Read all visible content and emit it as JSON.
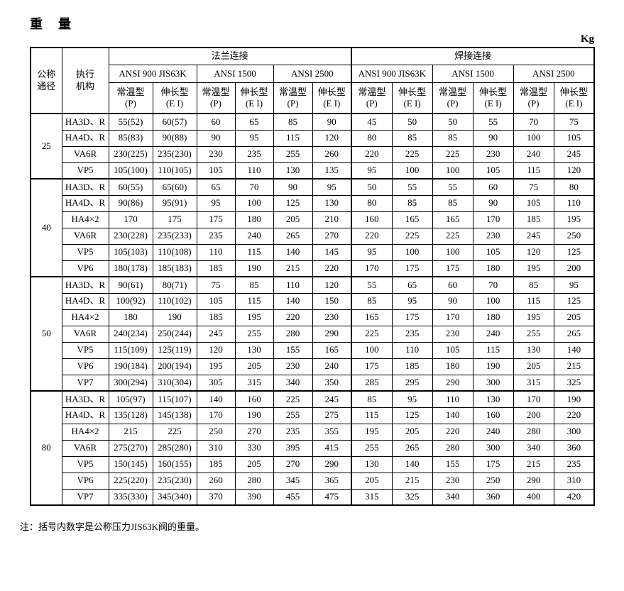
{
  "page": {
    "title": "重　量",
    "unit": "Kg",
    "note": "注：括号内数字是公称压力JIS63K阀的重量。"
  },
  "table": {
    "corner_headers": {
      "dn_lines": [
        "公称",
        "通径"
      ],
      "actuator_lines": [
        "执行",
        "机构"
      ]
    },
    "connection_groups": [
      "法兰连接",
      "焊接连接"
    ],
    "pressure_classes": [
      "ANSI 900  JIS63K",
      "ANSI 1500",
      "ANSI 2500"
    ],
    "type_headers": [
      {
        "line1": "常温型",
        "line2": "(P)"
      },
      {
        "line1": "伸长型",
        "line2": "(E I)"
      }
    ],
    "sections": [
      {
        "dn": "25",
        "rows": [
          {
            "actuator": "HA3D、R",
            "values": [
              "55(52)",
              "60(57)",
              "60",
              "65",
              "85",
              "90",
              "45",
              "50",
              "50",
              "55",
              "70",
              "75"
            ]
          },
          {
            "actuator": "HA4D、R",
            "values": [
              "85(83)",
              "90(88)",
              "90",
              "95",
              "115",
              "120",
              "80",
              "85",
              "85",
              "90",
              "100",
              "105"
            ]
          },
          {
            "actuator": "VA6R",
            "values": [
              "230(225)",
              "235(230)",
              "230",
              "235",
              "255",
              "260",
              "220",
              "225",
              "225",
              "230",
              "240",
              "245"
            ]
          },
          {
            "actuator": "VP5",
            "values": [
              "105(100)",
              "110(105)",
              "105",
              "110",
              "130",
              "135",
              "95",
              "100",
              "100",
              "105",
              "115",
              "120"
            ]
          }
        ]
      },
      {
        "dn": "40",
        "rows": [
          {
            "actuator": "HA3D、R",
            "values": [
              "60(55)",
              "65(60)",
              "65",
              "70",
              "90",
              "95",
              "50",
              "55",
              "55",
              "60",
              "75",
              "80"
            ]
          },
          {
            "actuator": "HA4D、R",
            "values": [
              "90(86)",
              "95(91)",
              "95",
              "100",
              "125",
              "130",
              "80",
              "85",
              "85",
              "90",
              "105",
              "110"
            ]
          },
          {
            "actuator": "HA4×2",
            "values": [
              "170",
              "175",
              "175",
              "180",
              "205",
              "210",
              "160",
              "165",
              "165",
              "170",
              "185",
              "195"
            ]
          },
          {
            "actuator": "VA6R",
            "values": [
              "230(228)",
              "235(233)",
              "235",
              "240",
              "265",
              "270",
              "220",
              "225",
              "225",
              "230",
              "245",
              "250"
            ]
          },
          {
            "actuator": "VP5",
            "values": [
              "105(103)",
              "110(108)",
              "110",
              "115",
              "140",
              "145",
              "95",
              "100",
              "100",
              "105",
              "120",
              "125"
            ]
          },
          {
            "actuator": "VP6",
            "values": [
              "180(178)",
              "185(183)",
              "185",
              "190",
              "215",
              "220",
              "170",
              "175",
              "175",
              "180",
              "195",
              "200"
            ]
          }
        ]
      },
      {
        "dn": "50",
        "rows": [
          {
            "actuator": "HA3D、R",
            "values": [
              "90(61)",
              "80(71)",
              "75",
              "85",
              "110",
              "120",
              "55",
              "65",
              "60",
              "70",
              "85",
              "95"
            ]
          },
          {
            "actuator": "HA4D、R",
            "values": [
              "100(92)",
              "110(102)",
              "105",
              "115",
              "140",
              "150",
              "85",
              "95",
              "90",
              "100",
              "115",
              "125"
            ]
          },
          {
            "actuator": "HA4×2",
            "values": [
              "180",
              "190",
              "185",
              "195",
              "220",
              "230",
              "165",
              "175",
              "170",
              "180",
              "195",
              "205"
            ]
          },
          {
            "actuator": "VA6R",
            "values": [
              "240(234)",
              "250(244)",
              "245",
              "255",
              "280",
              "290",
              "225",
              "235",
              "230",
              "240",
              "255",
              "265"
            ]
          },
          {
            "actuator": "VP5",
            "values": [
              "115(109)",
              "125(119)",
              "120",
              "130",
              "155",
              "165",
              "100",
              "110",
              "105",
              "115",
              "130",
              "140"
            ]
          },
          {
            "actuator": "VP6",
            "values": [
              "190(184)",
              "200(194)",
              "195",
              "205",
              "230",
              "240",
              "175",
              "185",
              "180",
              "190",
              "205",
              "215"
            ]
          },
          {
            "actuator": "VP7",
            "values": [
              "300(294)",
              "310(304)",
              "305",
              "315",
              "340",
              "350",
              "285",
              "295",
              "290",
              "300",
              "315",
              "325"
            ]
          }
        ]
      },
      {
        "dn": "80",
        "rows": [
          {
            "actuator": "HA3D、R",
            "values": [
              "105(97)",
              "115(107)",
              "140",
              "160",
              "225",
              "245",
              "85",
              "95",
              "110",
              "130",
              "170",
              "190"
            ]
          },
          {
            "actuator": "HA4D、R",
            "values": [
              "135(128)",
              "145(138)",
              "170",
              "190",
              "255",
              "275",
              "115",
              "125",
              "140",
              "160",
              "200",
              "220"
            ]
          },
          {
            "actuator": "HA4×2",
            "values": [
              "215",
              "225",
              "250",
              "270",
              "235",
              "355",
              "195",
              "205",
              "220",
              "240",
              "280",
              "300"
            ]
          },
          {
            "actuator": "VA6R",
            "values": [
              "275(270)",
              "285(280)",
              "310",
              "330",
              "395",
              "415",
              "255",
              "265",
              "280",
              "300",
              "340",
              "360"
            ]
          },
          {
            "actuator": "VP5",
            "values": [
              "150(145)",
              "160(155)",
              "185",
              "205",
              "270",
              "290",
              "130",
              "140",
              "155",
              "175",
              "215",
              "235"
            ]
          },
          {
            "actuator": "VP6",
            "values": [
              "225(220)",
              "235(230)",
              "260",
              "280",
              "345",
              "365",
              "205",
              "215",
              "230",
              "250",
              "290",
              "310"
            ]
          },
          {
            "actuator": "VP7",
            "values": [
              "335(330)",
              "345(340)",
              "370",
              "390",
              "455",
              "475",
              "315",
              "325",
              "340",
              "360",
              "400",
              "420"
            ]
          }
        ]
      }
    ]
  }
}
